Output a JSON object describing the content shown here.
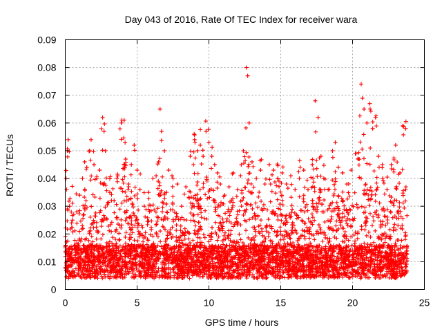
{
  "chart_data": {
    "type": "scatter",
    "title": "Day 043 of 2016, Rate Of TEC Index for receiver wara",
    "xlabel": "GPS time / hours",
    "ylabel": "ROTI / TECUs",
    "xlim": [
      0,
      25
    ],
    "ylim": [
      0,
      0.09
    ],
    "xticks": [
      0,
      5,
      10,
      15,
      20,
      25
    ],
    "xtick_labels": [
      "0",
      "5",
      "10",
      "15",
      "20",
      "25"
    ],
    "yticks": [
      0,
      0.01,
      0.02,
      0.03,
      0.04,
      0.05,
      0.06,
      0.07,
      0.08,
      0.09
    ],
    "ytick_labels": [
      "0",
      "0.01",
      "0.02",
      "0.03",
      "0.04",
      "0.05",
      "0.06",
      "0.07",
      "0.08",
      "0.09"
    ],
    "grid": true,
    "marker": "+",
    "color": "#ff0000",
    "x_range_of_data": [
      0,
      23.8
    ],
    "series": [
      {
        "name": "ROTI",
        "x": [
          0.05,
          0.15,
          0.2,
          0.3,
          0.5,
          0.8,
          1.0,
          1.2,
          1.35,
          1.5,
          1.7,
          1.8,
          2.0,
          2.2,
          2.4,
          2.6,
          2.7,
          2.8,
          3.1,
          3.4,
          3.6,
          3.9,
          4.1,
          4.2,
          4.4,
          4.6,
          4.8,
          5.0,
          5.2,
          5.5,
          5.8,
          6.1,
          6.5,
          6.6,
          6.7,
          6.9,
          7.2,
          7.5,
          7.8,
          8.1,
          8.4,
          8.7,
          9.0,
          9.2,
          9.4,
          9.6,
          9.8,
          10.0,
          10.2,
          10.4,
          10.6,
          10.8,
          11.1,
          11.4,
          11.7,
          12.0,
          12.2,
          12.4,
          12.6,
          12.7,
          12.8,
          13.0,
          13.3,
          13.6,
          13.9,
          14.2,
          14.5,
          14.8,
          15.1,
          15.4,
          15.7,
          16.0,
          16.3,
          16.6,
          16.9,
          17.2,
          17.4,
          17.6,
          17.8,
          18.0,
          18.3,
          18.6,
          18.8,
          19.0,
          19.3,
          19.6,
          19.9,
          20.2,
          20.4,
          20.6,
          20.8,
          21.0,
          21.2,
          21.4,
          21.6,
          21.8,
          22.1,
          22.4,
          22.7,
          23.0,
          23.3,
          23.5,
          23.7
        ],
        "y": [
          0.04,
          0.05,
          0.054,
          0.03,
          0.025,
          0.028,
          0.034,
          0.04,
          0.046,
          0.044,
          0.05,
          0.054,
          0.045,
          0.04,
          0.043,
          0.062,
          0.057,
          0.05,
          0.035,
          0.032,
          0.04,
          0.06,
          0.061,
          0.047,
          0.038,
          0.045,
          0.052,
          0.043,
          0.036,
          0.03,
          0.035,
          0.04,
          0.046,
          0.065,
          0.057,
          0.05,
          0.043,
          0.04,
          0.038,
          0.03,
          0.037,
          0.048,
          0.054,
          0.05,
          0.052,
          0.048,
          0.057,
          0.053,
          0.048,
          0.045,
          0.042,
          0.038,
          0.034,
          0.037,
          0.042,
          0.036,
          0.041,
          0.05,
          0.08,
          0.077,
          0.06,
          0.046,
          0.04,
          0.043,
          0.038,
          0.045,
          0.043,
          0.04,
          0.042,
          0.038,
          0.041,
          0.036,
          0.04,
          0.043,
          0.036,
          0.045,
          0.068,
          0.062,
          0.048,
          0.04,
          0.036,
          0.05,
          0.053,
          0.044,
          0.042,
          0.038,
          0.043,
          0.049,
          0.047,
          0.074,
          0.065,
          0.06,
          0.067,
          0.058,
          0.062,
          0.048,
          0.04,
          0.036,
          0.045,
          0.052,
          0.042,
          0.059,
          0.058
        ]
      }
    ]
  }
}
